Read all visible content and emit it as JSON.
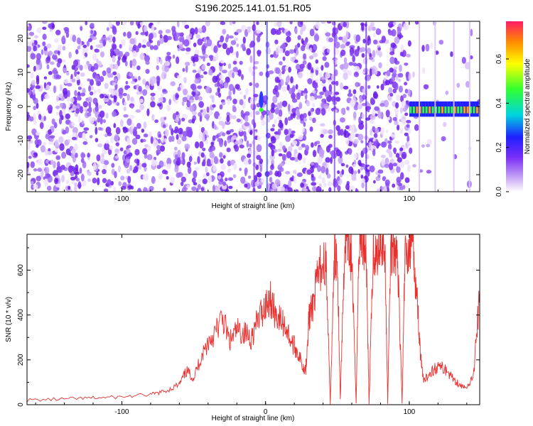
{
  "title": "S196.2025.141.01.51.R05",
  "chart_data": [
    {
      "type": "heatmap",
      "xlabel": "Height of straight line (km)",
      "ylabel": "Frequency (Hz)",
      "xlim": [
        -166,
        149
      ],
      "ylim": [
        -25,
        25
      ],
      "xticks": [
        -100,
        0,
        100
      ],
      "yticks": [
        -20,
        -10,
        0,
        10,
        20
      ],
      "colorbar": {
        "label": "Normalized spectral amplitude",
        "range": [
          0.0,
          0.77
        ],
        "ticks": [
          "0.0",
          "0.2",
          "0.4",
          "0.6"
        ],
        "tick_values": [
          0.0,
          0.2,
          0.4,
          0.6
        ]
      },
      "colors": {
        "low": "#ffffff",
        "mid": "#7b2ff7",
        "high": "#ff0000"
      },
      "features": [
        {
          "x": -3,
          "y": 0,
          "note": "strong narrow feature near 0 km, 0 Hz"
        },
        {
          "x_range": [
            100,
            149
          ],
          "y": -2,
          "note": "high-amplitude band near 0 Hz above 100 km"
        }
      ]
    },
    {
      "type": "line",
      "xlabel": "Height of straight line (km)",
      "ylabel": "SNR (10 * v/v)",
      "xlim": [
        -166,
        149
      ],
      "ylim": [
        0,
        760
      ],
      "xticks": [
        -100,
        0,
        100
      ],
      "yticks": [
        0,
        200,
        400,
        600
      ],
      "color": "#e8302e",
      "x": [
        -166,
        -140,
        -120,
        -100,
        -80,
        -70,
        -60,
        -55,
        -50,
        -45,
        -40,
        -35,
        -30,
        -25,
        -20,
        -15,
        -10,
        -5,
        0,
        3,
        6,
        10,
        14,
        18,
        22,
        26,
        28,
        30,
        32,
        35,
        38,
        42,
        45,
        48,
        50,
        52,
        55,
        57,
        60,
        63,
        65,
        67,
        70,
        72,
        75,
        77,
        80,
        83,
        85,
        87,
        90,
        92,
        95,
        97,
        100,
        102,
        104,
        106,
        108,
        110,
        115,
        120,
        125,
        130,
        135,
        140,
        145,
        149
      ],
      "y": [
        20,
        25,
        30,
        35,
        45,
        60,
        90,
        150,
        120,
        210,
        280,
        320,
        390,
        280,
        330,
        320,
        300,
        380,
        450,
        480,
        420,
        380,
        350,
        280,
        240,
        170,
        160,
        380,
        420,
        520,
        610,
        640,
        5,
        680,
        660,
        20,
        710,
        730,
        650,
        10,
        720,
        740,
        700,
        5,
        700,
        650,
        740,
        700,
        10,
        680,
        720,
        640,
        5,
        650,
        700,
        740,
        600,
        420,
        200,
        100,
        150,
        170,
        160,
        120,
        90,
        70,
        150,
        500
      ]
    }
  ]
}
